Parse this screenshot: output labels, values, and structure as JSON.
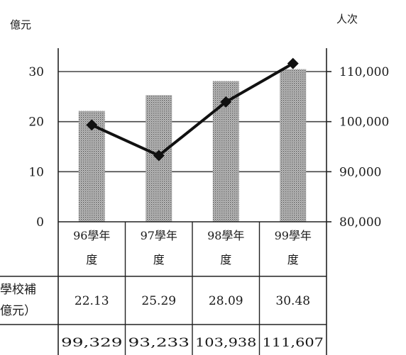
{
  "chart_data": {
    "type": "bar+line",
    "categories": [
      {
        "line1": "96學年",
        "line2": "度"
      },
      {
        "line1": "97學年",
        "line2": "度"
      },
      {
        "line1": "98學年",
        "line2": "度"
      },
      {
        "line1": "99學年",
        "line2": "度"
      }
    ],
    "left_unit": "億元",
    "right_unit": "人次",
    "left_ticks": [
      "0",
      "10",
      "20",
      "30"
    ],
    "right_ticks": [
      "80,000",
      "90,000",
      "100,000",
      "110,000"
    ],
    "ylim_left": [
      0,
      30
    ],
    "ylim_right": [
      80000,
      110000
    ],
    "grid": true,
    "series": [
      {
        "type": "bar",
        "axis": "left",
        "values": [
          22.13,
          25.29,
          28.09,
          30.48
        ]
      },
      {
        "type": "line",
        "axis": "right",
        "values": [
          99329,
          93233,
          103938,
          111607
        ]
      }
    ],
    "table": {
      "row1_label_line1": "學校補",
      "row1_label_line2": "億元）",
      "row1_values": [
        "22.13",
        "25.29",
        "28.09",
        "30.48"
      ],
      "row2_values": [
        "99,329",
        "93,233",
        "103,938",
        "111,607"
      ]
    },
    "colors": {
      "bar": "#a8a8a8",
      "line": "#111111",
      "grid": "#444444"
    }
  }
}
